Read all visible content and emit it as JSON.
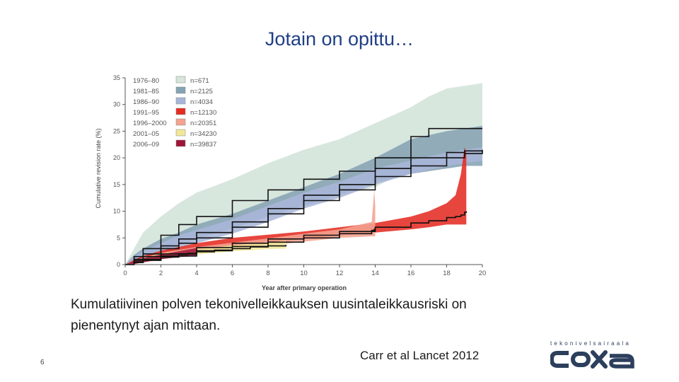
{
  "slide": {
    "title": "Jotain on opittu…",
    "caption_line1": "Kumulatiivinen polven tekonivelleikkauksen uusintaleikkausriski on",
    "caption_line2": "pienentynyt ajan mittaan.",
    "citation": "Carr et al Lancet 2012",
    "page_number": "6"
  },
  "brand": {
    "tagline": "tekonivelsairaala",
    "logo_text": "coxa",
    "color": "#2c3f5d"
  },
  "chart_data": {
    "type": "area",
    "title": "",
    "xlabel": "Year after primary operation",
    "ylabel": "Cumulative revision rate (%)",
    "xlim": [
      0,
      20
    ],
    "ylim": [
      0,
      35
    ],
    "xticks": [
      0,
      2,
      4,
      6,
      8,
      10,
      12,
      14,
      16,
      18,
      20
    ],
    "yticks": [
      0,
      5,
      10,
      15,
      20,
      25,
      30,
      35
    ],
    "grid": false,
    "legend_position": "top-left",
    "series": [
      {
        "name": "1976–80",
        "n": "n=671",
        "color": "#d6e6dc",
        "x": [
          0,
          0.5,
          1,
          2,
          3,
          4,
          6,
          8,
          10,
          12,
          14,
          16,
          17,
          18,
          19,
          20
        ],
        "mid": [
          0,
          1.5,
          3,
          5.5,
          7.5,
          9,
          12,
          14,
          16,
          17.5,
          20,
          24,
          25.5,
          25.5,
          25.5,
          25.5
        ],
        "upper": [
          0,
          3,
          6,
          9,
          11.5,
          13.5,
          16,
          19,
          21.5,
          23.5,
          26.5,
          29.5,
          31.5,
          33,
          33.5,
          34
        ],
        "lower": [
          0,
          0.5,
          1.5,
          3,
          4.5,
          6,
          8.5,
          10.5,
          12,
          13,
          14.5,
          18,
          19.5,
          20,
          20,
          20
        ]
      },
      {
        "name": "1981–85",
        "n": "n=2125",
        "color": "#86a3b4",
        "x": [
          0,
          0.5,
          1,
          2,
          3,
          4,
          6,
          8,
          10,
          12,
          14,
          16,
          18,
          19,
          20
        ],
        "mid": [
          0,
          1,
          2,
          3.5,
          4.8,
          6,
          8,
          10.5,
          13,
          15,
          18,
          20,
          21,
          21.3,
          21.5
        ],
        "upper": [
          0,
          1.8,
          3,
          4.8,
          6,
          7.5,
          9.5,
          12,
          14.5,
          17,
          20,
          23.5,
          25,
          25.5,
          26
        ],
        "lower": [
          0,
          0.4,
          1.2,
          2.5,
          3.5,
          4.8,
          6.8,
          9,
          11,
          13,
          15.5,
          17,
          18,
          18.5,
          18.5
        ]
      },
      {
        "name": "1986–90",
        "n": "n=4034",
        "color": "#a8b6d8",
        "x": [
          0,
          0.5,
          1,
          2,
          3,
          4,
          6,
          8,
          10,
          12,
          14,
          16,
          18,
          19,
          20
        ],
        "mid": [
          0,
          0.8,
          1.5,
          3,
          4,
          5,
          7,
          9.5,
          12,
          14,
          16.5,
          18.5,
          20,
          20.8,
          21.3
        ],
        "upper": [
          0,
          1.5,
          2.5,
          4,
          5.5,
          6.5,
          8.5,
          11,
          13.5,
          15.5,
          18,
          19.5,
          21,
          21.5,
          22
        ],
        "lower": [
          0,
          0.3,
          1,
          2,
          3,
          4,
          5.8,
          8,
          10.5,
          12.5,
          15,
          17,
          18.5,
          19,
          19.5
        ]
      },
      {
        "name": "1991–95",
        "n": "n=12130",
        "color": "#e42c23",
        "x": [
          0,
          0.5,
          1,
          2,
          4,
          6,
          8,
          10,
          12,
          14,
          16,
          17,
          18,
          18.5,
          18.8,
          19,
          19.1
        ],
        "mid": [
          0,
          0.5,
          1,
          2,
          3.2,
          4,
          4.8,
          5.5,
          6.2,
          7,
          7.8,
          8.2,
          8.8,
          9,
          9.3,
          9.8,
          10
        ],
        "upper": [
          0,
          0.9,
          1.6,
          2.6,
          4,
          5,
          5.6,
          6.2,
          7,
          7.8,
          9,
          10,
          11.5,
          13,
          17,
          22,
          21
        ],
        "lower": [
          0,
          0.2,
          0.6,
          1.5,
          2.5,
          3.2,
          4,
          4.8,
          5.4,
          6,
          6.6,
          7,
          7.5,
          7.5,
          7.5,
          7.5,
          7.5
        ]
      },
      {
        "name": "1996–2000",
        "n": "n=20351",
        "color": "#f4a391",
        "x": [
          0,
          0.5,
          1,
          2,
          4,
          6,
          8,
          10,
          12,
          13.8,
          13.95,
          14
        ],
        "mid": [
          0,
          0.4,
          0.8,
          1.6,
          2.6,
          3.4,
          4.2,
          5,
          5.8,
          6.4,
          6.6,
          6.7
        ],
        "upper": [
          0,
          0.7,
          1.3,
          2.2,
          3.3,
          4.1,
          4.9,
          5.8,
          6.6,
          8,
          14,
          11
        ],
        "lower": [
          0,
          0.1,
          0.4,
          1.1,
          2,
          2.8,
          3.6,
          4.3,
          5,
          5.3,
          5.3,
          5.3
        ]
      },
      {
        "name": "2001–05",
        "n": "n=34230",
        "color": "#f1e79a",
        "x": [
          0,
          0.5,
          1,
          2,
          3,
          4,
          5,
          6,
          7,
          8,
          9
        ],
        "mid": [
          0,
          0.4,
          0.9,
          1.5,
          2,
          2.4,
          2.7,
          3,
          3.3,
          3.5,
          3.7
        ],
        "upper": [
          0,
          0.7,
          1.3,
          2,
          2.5,
          2.9,
          3.2,
          3.6,
          3.9,
          4.2,
          4.5
        ],
        "lower": [
          0,
          0.1,
          0.5,
          1.1,
          1.5,
          1.9,
          2.2,
          2.5,
          2.7,
          2.9,
          3
        ]
      },
      {
        "name": "2006–09",
        "n": "n=39837",
        "color": "#a01339",
        "x": [
          0,
          0.5,
          1,
          2,
          3,
          3.5,
          4
        ],
        "mid": [
          0,
          0.4,
          0.8,
          1.4,
          1.9,
          2.1,
          2.3
        ],
        "upper": [
          0,
          0.7,
          1.2,
          1.9,
          2.5,
          2.8,
          3.1
        ],
        "lower": [
          0,
          0.1,
          0.4,
          1,
          1.4,
          1.5,
          1.7
        ]
      }
    ]
  }
}
